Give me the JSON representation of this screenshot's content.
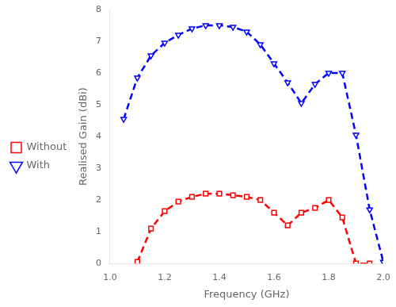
{
  "chart_data": {
    "type": "line",
    "xlabel": "Frequency (GHz)",
    "ylabel": "Realised Gain (dBi)",
    "xlim": [
      1.0,
      2.0
    ],
    "ylim": [
      0,
      8
    ],
    "xticks": [
      {
        "value": 1.0,
        "label": "1.0"
      },
      1.2,
      1.4,
      1.6,
      1.8,
      {
        "value": 2.0,
        "label": "2.0"
      }
    ],
    "yticks": [
      0,
      1,
      2,
      3,
      4,
      5,
      6,
      7,
      8
    ],
    "grid": false,
    "legend": "center left",
    "series": [
      {
        "name": "Without",
        "color": "#ff0000",
        "marker": "square",
        "line_style": "dashed",
        "x": [
          1.1,
          1.15,
          1.2,
          1.25,
          1.3,
          1.35,
          1.4,
          1.45,
          1.5,
          1.55,
          1.6,
          1.65,
          1.7,
          1.75,
          1.8,
          1.85,
          1.9,
          1.95
        ],
        "values": [
          0.05,
          1.1,
          1.65,
          1.95,
          2.1,
          2.2,
          2.2,
          2.15,
          2.1,
          2.0,
          1.6,
          1.2,
          1.6,
          1.75,
          2.0,
          1.45,
          0.0,
          0.0
        ]
      },
      {
        "name": "With",
        "color": "#0000ff",
        "marker": "triangle_down",
        "line_style": "dashed",
        "x": [
          1.05,
          1.1,
          1.15,
          1.2,
          1.25,
          1.3,
          1.35,
          1.4,
          1.45,
          1.5,
          1.55,
          1.6,
          1.65,
          1.7,
          1.75,
          1.8,
          1.85,
          1.9,
          1.95,
          2.0
        ],
        "values": [
          4.55,
          5.85,
          6.55,
          6.95,
          7.2,
          7.4,
          7.5,
          7.5,
          7.45,
          7.3,
          6.9,
          6.3,
          5.7,
          5.05,
          5.65,
          6.0,
          6.0,
          4.05,
          1.7,
          0.05
        ]
      }
    ]
  }
}
